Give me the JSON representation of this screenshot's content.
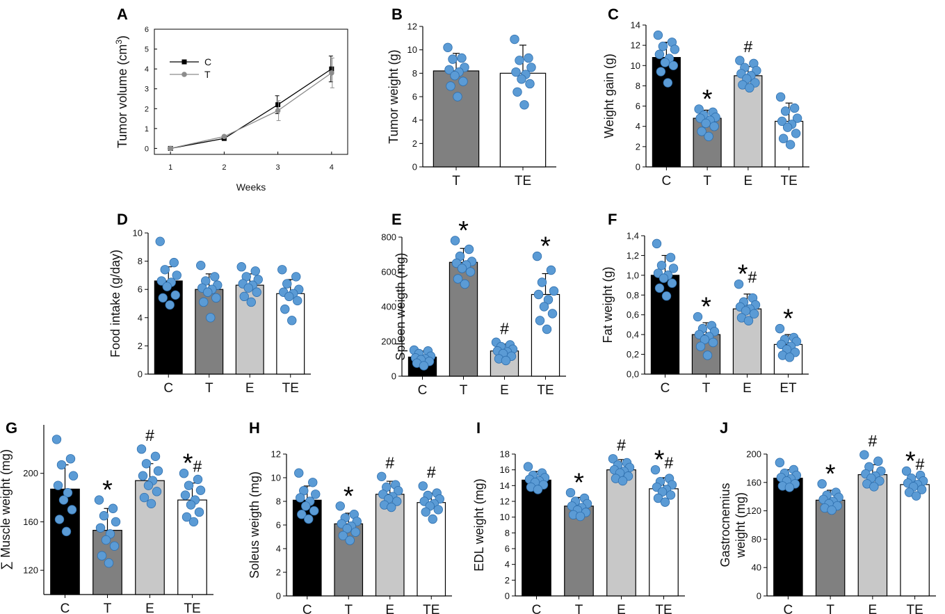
{
  "chart_data": [
    {
      "panel": "A",
      "type": "line",
      "xlabel": "Weeks",
      "ylabel_pre": "Tumor volume (cm",
      "ylabel_sup": "3",
      "ylabel_post": ")",
      "xlim": [
        0.7,
        4.3
      ],
      "ylim": [
        -0.3,
        6
      ],
      "xticks": [
        1,
        2,
        3,
        4
      ],
      "yticks": [
        0,
        1,
        2,
        3,
        4,
        5,
        6
      ],
      "ytick_labels": [
        "0",
        "1",
        "2",
        "3",
        "4",
        "5",
        "6"
      ],
      "x": [
        1,
        2,
        3,
        4
      ],
      "series": [
        {
          "name": "C",
          "color": "#000000",
          "marker": "square",
          "values": [
            0,
            0.5,
            2.2,
            4.0
          ],
          "errors": [
            0.02,
            0.05,
            0.45,
            0.65
          ]
        },
        {
          "name": "T",
          "color": "#8c8c8c",
          "marker": "circle",
          "values": [
            0,
            0.6,
            1.9,
            3.8
          ],
          "errors": [
            0.02,
            0.05,
            0.5,
            0.75
          ]
        }
      ]
    },
    {
      "panel": "B",
      "type": "bar",
      "ylabel": "Tumor weight (g)",
      "categories": [
        "T",
        "TE"
      ],
      "values": [
        8.2,
        8.0
      ],
      "errors": [
        1.5,
        2.4
      ],
      "ylim": [
        0,
        12
      ],
      "yticks": [
        0,
        2,
        4,
        6,
        8,
        10,
        12
      ],
      "ytick_labels": [
        "0",
        "2",
        "4",
        "6",
        "8",
        "10",
        "12"
      ],
      "colors": [
        "#808080",
        "#ffffff"
      ],
      "annotations": [
        "",
        ""
      ],
      "points": [
        [
          10.2,
          9.3,
          9.2,
          8.5,
          8.3,
          8.1,
          7.8,
          7.3,
          6.9,
          6.0
        ],
        [
          10.9,
          9.3,
          9.1,
          8.5,
          8.1,
          7.9,
          7.5,
          7.1,
          6.4,
          5.3
        ]
      ]
    },
    {
      "panel": "C",
      "type": "bar",
      "ylabel": "Weight gain (g)",
      "categories": [
        "C",
        "T",
        "E",
        "TE"
      ],
      "values": [
        10.8,
        4.8,
        9.0,
        4.5
      ],
      "errors": [
        1.5,
        0.8,
        0.9,
        1.8
      ],
      "ylim": [
        0,
        14
      ],
      "yticks": [
        0,
        2,
        4,
        6,
        8,
        10,
        12,
        14
      ],
      "ytick_labels": [
        "0",
        "2",
        "4",
        "6",
        "8",
        "10",
        "12",
        "14"
      ],
      "colors": [
        "#000000",
        "#808080",
        "#c8c8c8",
        "#ffffff"
      ],
      "annotations": [
        "",
        "*",
        "#",
        ""
      ],
      "points": [
        [
          13.0,
          12.3,
          11.9,
          11.6,
          11.1,
          10.7,
          10.3,
          10.0,
          9.4,
          8.3
        ],
        [
          5.7,
          5.4,
          5.1,
          4.9,
          4.8,
          4.6,
          4.3,
          4.0,
          3.5,
          3.0
        ],
        [
          10.5,
          10.2,
          9.8,
          9.5,
          9.2,
          9.0,
          8.7,
          8.3,
          8.1,
          7.8
        ],
        [
          6.9,
          5.8,
          5.5,
          4.8,
          4.5,
          4.2,
          3.9,
          3.3,
          2.8,
          2.2
        ]
      ]
    },
    {
      "panel": "D",
      "type": "bar",
      "ylabel": "Food intake (g/day)",
      "categories": [
        "C",
        "T",
        "E",
        "TE"
      ],
      "values": [
        6.6,
        6.0,
        6.3,
        5.7
      ],
      "errors": [
        1.0,
        1.1,
        0.8,
        1.0
      ],
      "ylim": [
        0,
        10
      ],
      "yticks": [
        0,
        2,
        4,
        6,
        8,
        10
      ],
      "ytick_labels": [
        "0",
        "2",
        "4",
        "6",
        "8",
        "10"
      ],
      "colors": [
        "#000000",
        "#808080",
        "#c8c8c8",
        "#ffffff"
      ],
      "annotations": [
        "",
        "",
        "",
        ""
      ],
      "points": [
        [
          9.4,
          7.9,
          7.4,
          7.0,
          6.6,
          6.5,
          6.2,
          5.6,
          5.4,
          4.9
        ],
        [
          7.7,
          6.9,
          6.6,
          6.3,
          6.1,
          6.0,
          5.8,
          5.4,
          5.1,
          4.0
        ],
        [
          7.6,
          7.3,
          6.9,
          6.7,
          6.4,
          6.3,
          6.1,
          5.8,
          5.5,
          5.1
        ],
        [
          7.4,
          6.9,
          6.4,
          6.0,
          5.8,
          5.7,
          5.5,
          5.2,
          4.6,
          3.8
        ]
      ]
    },
    {
      "panel": "E",
      "type": "bar",
      "ylabel": "Spleen weigth (mg)",
      "categories": [
        "C",
        "T",
        "E",
        "TE"
      ],
      "values": [
        110,
        655,
        145,
        470
      ],
      "errors": [
        35,
        80,
        40,
        120
      ],
      "ylim": [
        0,
        800
      ],
      "yticks": [
        0,
        200,
        400,
        600,
        800
      ],
      "ytick_labels": [
        "0",
        "200",
        "400",
        "600",
        "800"
      ],
      "colors": [
        "#000000",
        "#808080",
        "#c8c8c8",
        "#ffffff"
      ],
      "annotations": [
        "",
        "*",
        "#",
        "*"
      ],
      "points": [
        [
          150,
          145,
          130,
          115,
          105,
          100,
          95,
          85,
          75,
          60
        ],
        [
          780,
          730,
          690,
          660,
          650,
          640,
          620,
          600,
          560,
          530
        ],
        [
          195,
          180,
          170,
          155,
          145,
          140,
          130,
          115,
          100,
          90
        ],
        [
          690,
          610,
          540,
          490,
          470,
          440,
          400,
          360,
          320,
          270
        ]
      ]
    },
    {
      "panel": "F",
      "type": "bar",
      "ylabel": "Fat weight (g)",
      "categories": [
        "C",
        "T",
        "E",
        "ET"
      ],
      "values": [
        1.0,
        0.4,
        0.66,
        0.3
      ],
      "errors": [
        0.2,
        0.12,
        0.15,
        0.1
      ],
      "ylim": [
        0,
        1.4
      ],
      "yticks": [
        0,
        0.2,
        0.4,
        0.6,
        0.8,
        1.0,
        1.2,
        1.4
      ],
      "ytick_labels": [
        "0,0",
        "0,2",
        "0,4",
        "0,6",
        "0,8",
        "1,0",
        "1,2",
        "1,4"
      ],
      "colors": [
        "#000000",
        "#808080",
        "#c8c8c8",
        "#ffffff"
      ],
      "annotations": [
        "",
        "*",
        "*#",
        "*"
      ],
      "points": [
        [
          1.32,
          1.18,
          1.1,
          1.07,
          1.02,
          1.0,
          0.97,
          0.92,
          0.87,
          0.79
        ],
        [
          0.58,
          0.49,
          0.46,
          0.43,
          0.4,
          0.38,
          0.35,
          0.32,
          0.28,
          0.19
        ],
        [
          0.91,
          0.77,
          0.73,
          0.7,
          0.68,
          0.66,
          0.64,
          0.61,
          0.57,
          0.54
        ],
        [
          0.46,
          0.37,
          0.35,
          0.33,
          0.3,
          0.28,
          0.25,
          0.22,
          0.19,
          0.17
        ]
      ]
    },
    {
      "panel": "G",
      "type": "bar",
      "ylabel": "∑ Muscle weight (mg)",
      "categories": [
        "C",
        "T",
        "E",
        "TE"
      ],
      "values": [
        187,
        153,
        194,
        178
      ],
      "errors": [
        20,
        18,
        14,
        14
      ],
      "ylim": [
        100,
        240
      ],
      "yticks": [
        120,
        160,
        200
      ],
      "ytick_labels": [
        "120",
        "160",
        "200"
      ],
      "colors": [
        "#000000",
        "#808080",
        "#c8c8c8",
        "#ffffff"
      ],
      "annotations": [
        "",
        "*",
        "#",
        "*#"
      ],
      "points": [
        [
          228,
          212,
          207,
          198,
          190,
          184,
          178,
          170,
          162,
          152
        ],
        [
          178,
          171,
          165,
          160,
          155,
          150,
          145,
          140,
          132,
          126
        ],
        [
          220,
          214,
          208,
          202,
          198,
          194,
          190,
          185,
          180,
          175
        ],
        [
          200,
          195,
          190,
          186,
          182,
          178,
          174,
          168,
          164,
          160
        ]
      ]
    },
    {
      "panel": "H",
      "type": "bar",
      "ylabel": "Soleus weigth (mg)",
      "categories": [
        "C",
        "T",
        "E",
        "TE"
      ],
      "values": [
        8.1,
        6.1,
        8.6,
        7.9
      ],
      "errors": [
        1.2,
        0.9,
        1.1,
        0.8
      ],
      "ylim": [
        0,
        12
      ],
      "yticks": [
        0,
        2,
        4,
        6,
        8,
        10,
        12
      ],
      "ytick_labels": [
        "0",
        "2",
        "4",
        "6",
        "8",
        "10",
        "12"
      ],
      "colors": [
        "#000000",
        "#808080",
        "#c8c8c8",
        "#ffffff"
      ],
      "annotations": [
        "",
        "*",
        "#",
        "#"
      ],
      "points": [
        [
          10.4,
          9.6,
          8.9,
          8.6,
          8.3,
          8.0,
          7.6,
          7.2,
          6.9,
          6.5
        ],
        [
          7.6,
          6.9,
          6.6,
          6.3,
          6.1,
          5.9,
          5.7,
          5.4,
          5.1,
          4.7
        ],
        [
          10.1,
          9.4,
          9.2,
          8.9,
          8.6,
          8.4,
          8.2,
          8.0,
          7.7,
          7.5
        ],
        [
          9.3,
          8.7,
          8.5,
          8.2,
          8.0,
          7.8,
          7.6,
          7.3,
          7.1,
          6.5
        ]
      ]
    },
    {
      "panel": "I",
      "type": "bar",
      "ylabel": "EDL weight (mg)",
      "categories": [
        "C",
        "T",
        "E",
        "TE"
      ],
      "values": [
        14.7,
        11.4,
        16.0,
        13.6
      ],
      "errors": [
        1.1,
        1.1,
        1.3,
        1.4
      ],
      "ylim": [
        0,
        18
      ],
      "yticks": [
        0,
        2,
        4,
        6,
        8,
        10,
        12,
        14,
        16,
        18
      ],
      "ytick_labels": [
        "0",
        "2",
        "4",
        "6",
        "8",
        "10",
        "12",
        "14",
        "16",
        "18"
      ],
      "colors": [
        "#000000",
        "#808080",
        "#c8c8c8",
        "#ffffff"
      ],
      "annotations": [
        "",
        "*",
        "#",
        "*#"
      ],
      "points": [
        [
          16.4,
          15.6,
          15.3,
          15.0,
          14.8,
          14.6,
          14.4,
          14.1,
          13.8,
          13.5
        ],
        [
          13.1,
          12.4,
          12.0,
          11.7,
          11.4,
          11.2,
          10.9,
          10.6,
          10.3,
          10.1
        ],
        [
          17.4,
          16.9,
          16.6,
          16.3,
          16.0,
          15.8,
          15.6,
          15.2,
          14.9,
          14.6
        ],
        [
          16.0,
          14.9,
          14.5,
          14.1,
          13.8,
          13.5,
          13.2,
          12.8,
          12.4,
          11.9
        ]
      ]
    },
    {
      "panel": "J",
      "type": "bar",
      "ylabel_lines": [
        "Gastrocnemius",
        "weight (mg)"
      ],
      "categories": [
        "C",
        "T",
        "E",
        "TE"
      ],
      "values": [
        166,
        135,
        171,
        157
      ],
      "errors": [
        12,
        14,
        14,
        11
      ],
      "ylim": [
        0,
        200
      ],
      "yticks": [
        0,
        40,
        80,
        120,
        160,
        200
      ],
      "ytick_labels": [
        "0",
        "40",
        "80",
        "120",
        "160",
        "200"
      ],
      "colors": [
        "#000000",
        "#808080",
        "#c8c8c8",
        "#ffffff"
      ],
      "annotations": [
        "",
        "*",
        "#",
        "*#"
      ],
      "points": [
        [
          188,
          178,
          173,
          170,
          167,
          165,
          162,
          158,
          155,
          153
        ],
        [
          158,
          146,
          142,
          139,
          136,
          133,
          130,
          127,
          124,
          121
        ],
        [
          199,
          190,
          182,
          176,
          172,
          169,
          166,
          162,
          158,
          154
        ],
        [
          176,
          170,
          166,
          162,
          159,
          157,
          154,
          150,
          146,
          141
        ]
      ]
    }
  ],
  "style": {
    "dot_fill": "#5b9bd5",
    "dot_stroke": "#2e6fae",
    "axis_color": "#000000",
    "line_c": "#000000",
    "line_t": "#8c8c8c"
  }
}
